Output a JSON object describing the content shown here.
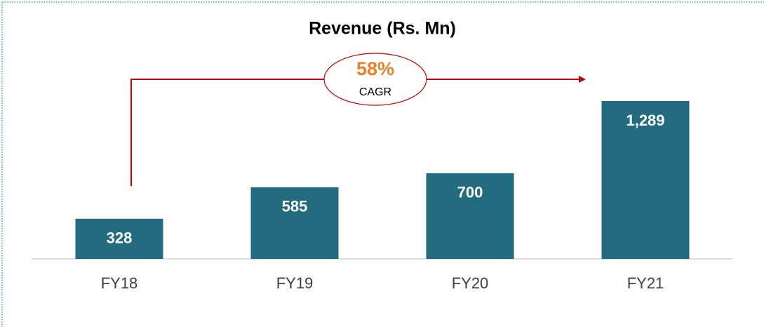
{
  "chart_data": {
    "type": "bar",
    "title": "Revenue (Rs. Mn)",
    "categories": [
      "FY18",
      "FY19",
      "FY20",
      "FY21"
    ],
    "values": [
      328,
      585,
      700,
      1289
    ],
    "value_labels": [
      "328",
      "585",
      "700",
      "1,289"
    ],
    "color": "#236b7e",
    "annotations": [
      "58%",
      "CAGR"
    ]
  }
}
